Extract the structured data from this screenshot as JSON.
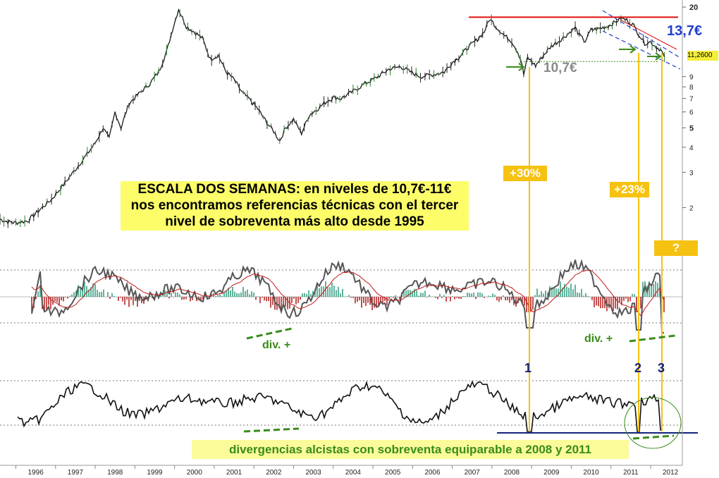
{
  "annotations": {
    "headline_lines": [
      "ESCALA DOS SEMANAS: en niveles de 10,7€-11€",
      "nos encontramos referencias técnicas con el tercer",
      "nivel de sobreventa más alto desde 1995"
    ],
    "pct_1": "+30%",
    "pct_2": "+23%",
    "pct_3": "?",
    "target_price": "13,7€",
    "support_price": "10,7€",
    "last_price": "11,2600",
    "div_left": "div. +",
    "div_right": "div. +",
    "marker_1": "1",
    "marker_2": "2",
    "marker_3": "3",
    "footer": "divergencias alcistas con sobreventa equiparable a 2008 y 2011"
  },
  "colors": {
    "price_line": "#1a1a1a",
    "resistance": "#e01010",
    "channel": "#1f3fcf",
    "vertical_markers": "#f5c211",
    "support_dash": "#3a8c1a",
    "macd_line": "#555555",
    "signal_line": "#c01818",
    "hist_up": "#2a9a7a",
    "hist_down": "#b01818",
    "osc_fill": "#d9a9a9",
    "baseline": "#13237a"
  },
  "chart_data": {
    "type": "line",
    "x_axis": {
      "tick_labels": [
        "1996",
        "1997",
        "1998",
        "1999",
        "2000",
        "2001",
        "2002",
        "2003",
        "2004",
        "2005",
        "2006",
        "2007",
        "2008",
        "2009",
        "2010",
        "2011",
        "2012"
      ],
      "range": [
        1995.6,
        2012.8
      ]
    },
    "y_axis": {
      "scale": "log",
      "tick_labels": [
        "2",
        "3",
        "4",
        "5",
        "6",
        "7",
        "8",
        "9",
        "20"
      ],
      "range": [
        1.6,
        21
      ]
    },
    "series": [
      {
        "points": [
          [
            1995.6,
            1.75
          ],
          [
            1995.8,
            1.7
          ],
          [
            1996.0,
            1.68
          ],
          [
            1996.3,
            1.72
          ],
          [
            1996.6,
            1.95
          ],
          [
            1996.9,
            2.2
          ],
          [
            1997.2,
            2.6
          ],
          [
            1997.5,
            3.1
          ],
          [
            1997.8,
            3.7
          ],
          [
            1998.0,
            4.2
          ],
          [
            1998.2,
            5.0
          ],
          [
            1998.35,
            4.4
          ],
          [
            1998.5,
            6.0
          ],
          [
            1998.65,
            5.0
          ],
          [
            1998.85,
            6.6
          ],
          [
            1999.1,
            7.4
          ],
          [
            1999.35,
            8.2
          ],
          [
            1999.6,
            9.5
          ],
          [
            1999.8,
            12.0
          ],
          [
            1999.95,
            15.5
          ],
          [
            2000.1,
            19.5
          ],
          [
            2000.3,
            16.0
          ],
          [
            2000.5,
            15.0
          ],
          [
            2000.7,
            14.0
          ],
          [
            2000.9,
            11.0
          ],
          [
            2001.1,
            11.5
          ],
          [
            2001.3,
            9.5
          ],
          [
            2001.5,
            8.7
          ],
          [
            2001.7,
            7.5
          ],
          [
            2001.9,
            6.9
          ],
          [
            2002.1,
            6.2
          ],
          [
            2002.3,
            5.4
          ],
          [
            2002.5,
            4.8
          ],
          [
            2002.65,
            4.3
          ],
          [
            2002.8,
            5.0
          ],
          [
            2003.0,
            5.5
          ],
          [
            2003.2,
            4.7
          ],
          [
            2003.4,
            5.8
          ],
          [
            2003.6,
            6.2
          ],
          [
            2003.8,
            6.7
          ],
          [
            2004.0,
            7.1
          ],
          [
            2004.2,
            7.0
          ],
          [
            2004.5,
            7.6
          ],
          [
            2004.8,
            8.3
          ],
          [
            2005.0,
            8.7
          ],
          [
            2005.2,
            9.2
          ],
          [
            2005.4,
            9.8
          ],
          [
            2005.7,
            10.1
          ],
          [
            2005.9,
            9.6
          ],
          [
            2006.2,
            9.0
          ],
          [
            2006.5,
            9.2
          ],
          [
            2006.8,
            9.5
          ],
          [
            2007.0,
            10.6
          ],
          [
            2007.2,
            11.4
          ],
          [
            2007.4,
            12.6
          ],
          [
            2007.6,
            13.6
          ],
          [
            2007.8,
            15.0
          ],
          [
            2007.95,
            17.5
          ],
          [
            2008.1,
            16.0
          ],
          [
            2008.3,
            14.5
          ],
          [
            2008.5,
            13.5
          ],
          [
            2008.65,
            12.0
          ],
          [
            2008.75,
            10.6
          ],
          [
            2008.8,
            9.2
          ],
          [
            2008.9,
            11.2
          ],
          [
            2009.1,
            10.2
          ],
          [
            2009.3,
            11.5
          ],
          [
            2009.5,
            12.8
          ],
          [
            2009.7,
            13.6
          ],
          [
            2009.9,
            14.6
          ],
          [
            2010.1,
            15.8
          ],
          [
            2010.2,
            14.5
          ],
          [
            2010.35,
            13.5
          ],
          [
            2010.5,
            15.4
          ],
          [
            2010.7,
            15.6
          ],
          [
            2010.9,
            16.0
          ],
          [
            2011.1,
            16.8
          ],
          [
            2011.25,
            17.6
          ],
          [
            2011.4,
            17.2
          ],
          [
            2011.55,
            16.4
          ],
          [
            2011.7,
            14.7
          ],
          [
            2011.85,
            13.2
          ],
          [
            2012.0,
            13.4
          ],
          [
            2012.15,
            12.6
          ],
          [
            2012.25,
            12.3
          ],
          [
            2012.35,
            11.26
          ]
        ]
      }
    ],
    "resistance_level": 17.8,
    "support_level": 10.7,
    "markers": [
      {
        "label": "1",
        "x": 2008.8,
        "move": "+30%"
      },
      {
        "label": "2",
        "x": 2011.7,
        "move": "+23%"
      },
      {
        "label": "3",
        "x": 2012.3,
        "move": "?"
      }
    ]
  }
}
